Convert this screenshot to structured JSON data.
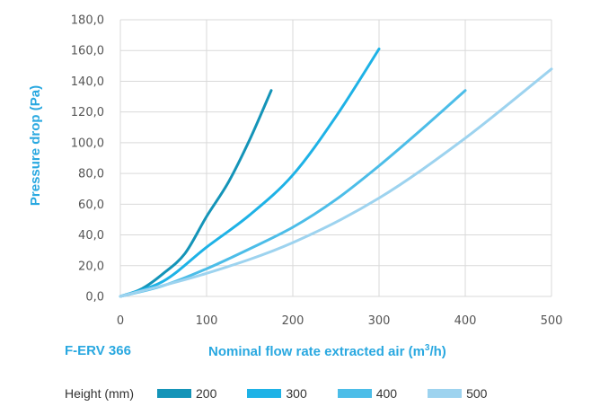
{
  "chart_data": {
    "type": "line",
    "ylabel": "Pressure drop (Pa)",
    "xlabel_pre": "Nominal flow rate extracted air (m",
    "xlabel_sup": "3",
    "xlabel_post": "/h)",
    "model_label": "F-ERV 366",
    "legend_title": "Height (mm)",
    "legend_position": "bottom",
    "grid": true,
    "xlim": [
      0,
      500
    ],
    "ylim": [
      0,
      180
    ],
    "x_ticks": [
      0,
      100,
      200,
      300,
      400,
      500
    ],
    "x_tick_labels": [
      "0",
      "100",
      "200",
      "300",
      "400",
      "500"
    ],
    "y_ticks": [
      0,
      20,
      40,
      60,
      80,
      100,
      120,
      140,
      160,
      180
    ],
    "y_tick_labels": [
      "0,0",
      "20,0",
      "40,0",
      "60,0",
      "80,0",
      "100,0",
      "120,0",
      "140,0",
      "160,0",
      "180,0"
    ],
    "series": [
      {
        "name": "200",
        "color": "#1494b8",
        "points": [
          [
            0,
            0
          ],
          [
            25,
            5
          ],
          [
            50,
            15
          ],
          [
            75,
            28
          ],
          [
            100,
            52
          ],
          [
            125,
            74
          ],
          [
            150,
            102
          ],
          [
            175,
            134
          ]
        ]
      },
      {
        "name": "300",
        "color": "#1eb2e6",
        "points": [
          [
            0,
            0
          ],
          [
            50,
            10
          ],
          [
            100,
            32
          ],
          [
            150,
            53
          ],
          [
            200,
            79
          ],
          [
            250,
            117
          ],
          [
            300,
            161
          ]
        ]
      },
      {
        "name": "400",
        "color": "#4cbde8",
        "points": [
          [
            0,
            0
          ],
          [
            50,
            7
          ],
          [
            100,
            18
          ],
          [
            150,
            31
          ],
          [
            200,
            45
          ],
          [
            250,
            63
          ],
          [
            300,
            85
          ],
          [
            350,
            109
          ],
          [
            400,
            134
          ]
        ]
      },
      {
        "name": "500",
        "color": "#9dd3ef",
        "points": [
          [
            0,
            0
          ],
          [
            100,
            15
          ],
          [
            200,
            35
          ],
          [
            300,
            64
          ],
          [
            400,
            103
          ],
          [
            500,
            148
          ]
        ]
      }
    ]
  }
}
